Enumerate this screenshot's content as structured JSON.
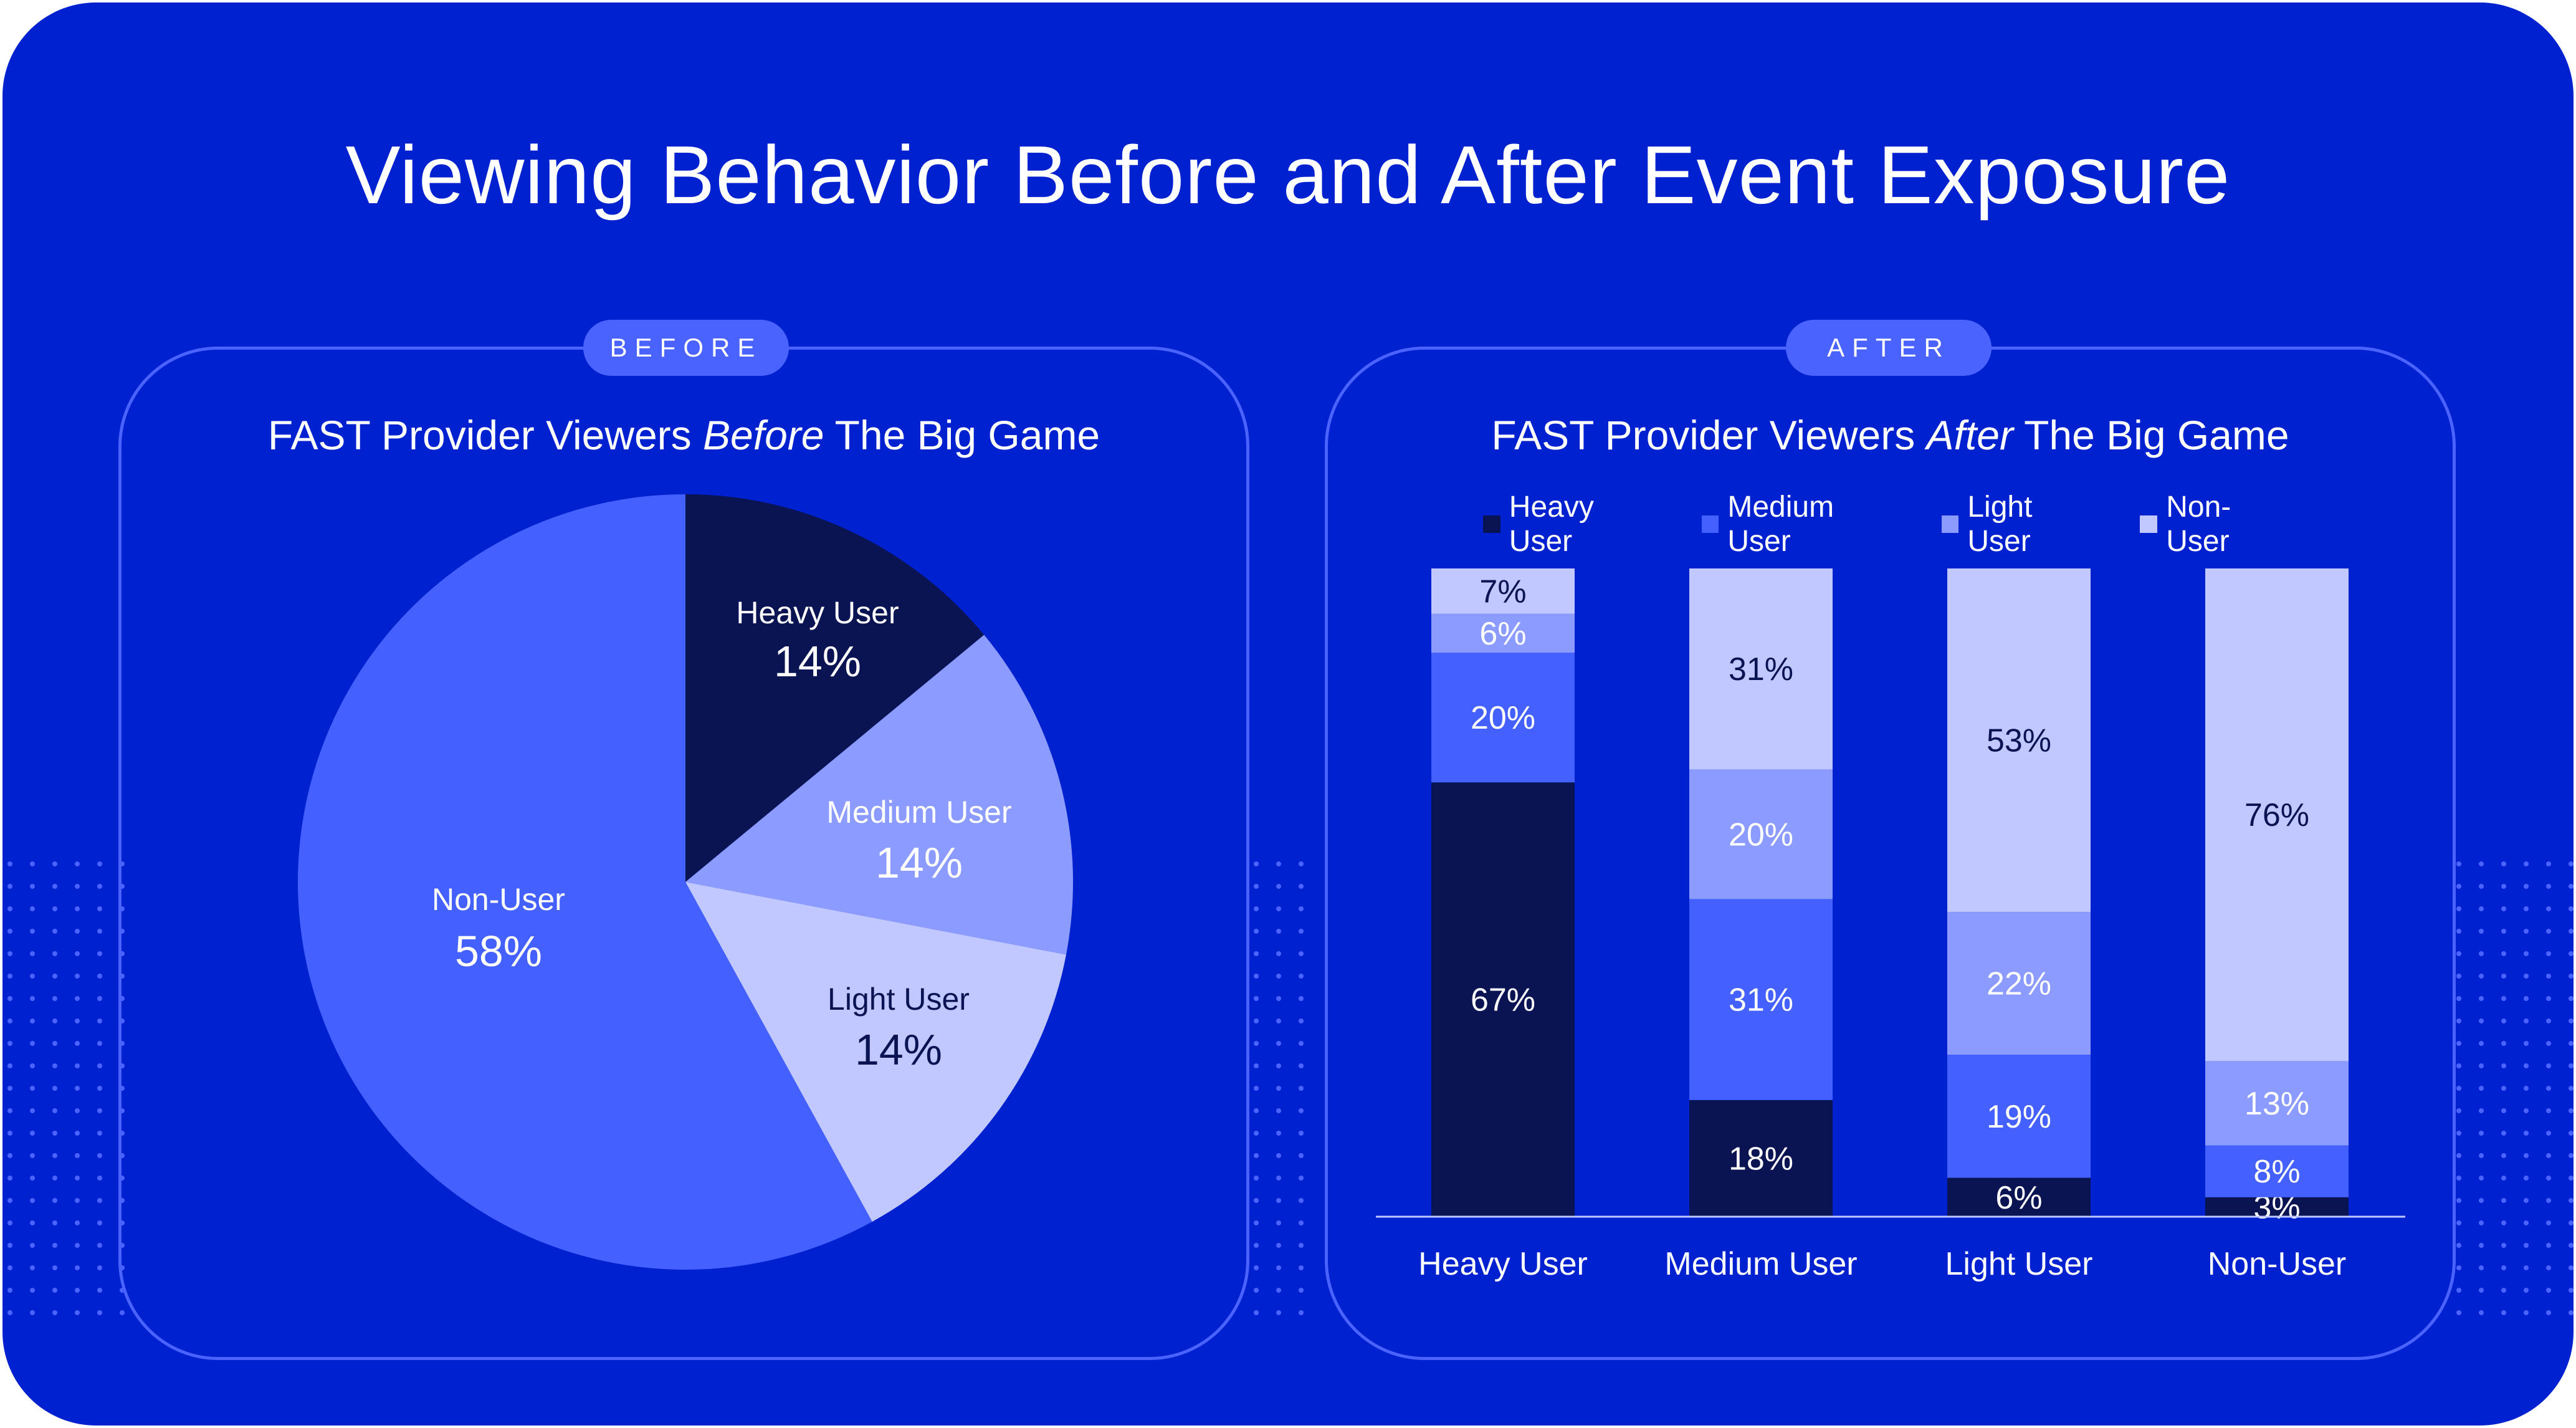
{
  "title": "Viewing Behavior Before and After Event Exposure",
  "before_panel": {
    "pill": "BEFORE",
    "title_prefix": "FAST Provider Viewers ",
    "title_em": "Before",
    "title_suffix": " The Big Game"
  },
  "after_panel": {
    "pill": "AFTER",
    "title_prefix": "FAST Provider Viewers ",
    "title_em": "After",
    "title_suffix": " The Big Game"
  },
  "colors": {
    "heavy": "#0b1452",
    "medium": "#4461ff",
    "light": "#8b9bff",
    "nonuser": "#c1c8ff",
    "background": "#0021cf",
    "accent": "#4a63ff"
  },
  "chart_data": [
    {
      "type": "pie",
      "title": "FAST Provider Viewers Before The Big Game",
      "labels": [
        "Heavy User",
        "Medium User",
        "Light User",
        "Non-User"
      ],
      "values": [
        14,
        14,
        14,
        58
      ],
      "value_labels": [
        "14%",
        "14%",
        "14%",
        "58%"
      ],
      "colors": [
        "#0b1452",
        "#8b9bff",
        "#c1c8ff",
        "#4461ff"
      ]
    },
    {
      "type": "bar",
      "stacked": true,
      "title": "FAST Provider Viewers After The Big Game",
      "categories": [
        "Heavy User",
        "Medium User",
        "Light User",
        "Non-User"
      ],
      "series": [
        {
          "name": "Heavy User",
          "values": [
            67,
            18,
            6,
            3
          ],
          "color": "#0b1452"
        },
        {
          "name": "Medium User",
          "values": [
            20,
            31,
            19,
            8
          ],
          "color": "#4461ff"
        },
        {
          "name": "Light User",
          "values": [
            6,
            20,
            22,
            13
          ],
          "color": "#8b9bff"
        },
        {
          "name": "Non-User",
          "values": [
            7,
            31,
            53,
            76
          ],
          "color": "#c1c8ff"
        }
      ],
      "legend": "top",
      "ylim": [
        0,
        100
      ]
    }
  ]
}
